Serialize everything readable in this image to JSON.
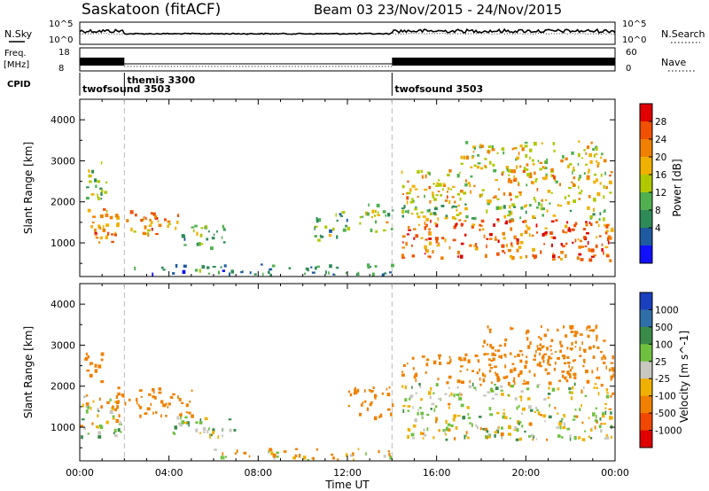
{
  "header": {
    "station": "Saskatoon (fitACF)",
    "beam_date": "Beam 03  23/Nov/2015 - 24/Nov/2015"
  },
  "panels": {
    "nsky": {
      "label": "N.Sky",
      "ticks": [
        "10^5",
        "10^0"
      ]
    },
    "nsearch": {
      "label": "N.Search",
      "ticks": [
        "10^5",
        "10^0"
      ]
    },
    "freq": {
      "label_line1": "Freq.",
      "label_line2": "[MHz]",
      "ticks": [
        "18",
        "8"
      ]
    },
    "nave": {
      "label": "Nave",
      "ticks": [
        "60",
        "0"
      ]
    },
    "cpid": {
      "label": "CPID",
      "segments": [
        {
          "name": "twofsound 3503",
          "start_h": 0.0,
          "end_h": 2.0
        },
        {
          "name": "themis 3300",
          "start_h": 2.0,
          "end_h": 14.0
        },
        {
          "name": "twofsound 3503",
          "start_h": 14.0,
          "end_h": 24.0
        }
      ]
    }
  },
  "chart_data": [
    {
      "type": "heatmap",
      "title": "Power",
      "ylabel": "Slant Range [km]",
      "xlabel": "",
      "xlim": [
        0,
        24
      ],
      "ylim": [
        180,
        4500
      ],
      "yticks": [
        "1000",
        "2000",
        "3000",
        "4000"
      ],
      "colorbar": {
        "label": "Power [dB]",
        "ticks": [
          "28",
          "24",
          "20",
          "16",
          "12",
          "8",
          "4"
        ],
        "colors": [
          "#e00000",
          "#f05000",
          "#f08000",
          "#f0b000",
          "#b0c800",
          "#50b050",
          "#2e8b57",
          "#1e5aa0",
          "#1010ff"
        ]
      },
      "regions": [
        {
          "t0": 0.2,
          "t1": 1.5,
          "r0": 1000,
          "r1": 1900,
          "value": 22
        },
        {
          "t0": 0.2,
          "t1": 1.2,
          "r0": 2100,
          "r1": 3100,
          "value": 12
        },
        {
          "t0": 1.5,
          "t1": 4.5,
          "r0": 1200,
          "r1": 1800,
          "value": 22
        },
        {
          "t0": 4.5,
          "t1": 6.5,
          "r0": 900,
          "r1": 1500,
          "value": 10
        },
        {
          "t0": 2.0,
          "t1": 14.0,
          "r0": 200,
          "r1": 500,
          "value": 6
        },
        {
          "t0": 10.5,
          "t1": 12.0,
          "r0": 1100,
          "r1": 1800,
          "value": 10
        },
        {
          "t0": 12.5,
          "t1": 14.0,
          "r0": 1300,
          "r1": 2000,
          "value": 14
        },
        {
          "t0": 14.4,
          "t1": 24.0,
          "r0": 600,
          "r1": 1600,
          "value": 24
        },
        {
          "t0": 14.4,
          "t1": 24.0,
          "r0": 1600,
          "r1": 2000,
          "value": 12
        },
        {
          "t0": 14.4,
          "t1": 24.0,
          "r0": 2000,
          "r1": 2800,
          "value": 18
        },
        {
          "t0": 17.0,
          "t1": 23.5,
          "r0": 2800,
          "r1": 3500,
          "value": 16
        }
      ]
    },
    {
      "type": "heatmap",
      "title": "Velocity",
      "ylabel": "Slant Range [km]",
      "xlabel": "Time UT",
      "xlim": [
        0,
        24
      ],
      "ylim": [
        180,
        4500
      ],
      "xticks": [
        "00:00",
        "04:00",
        "08:00",
        "12:00",
        "16:00",
        "20:00",
        "00:00"
      ],
      "yticks": [
        "1000",
        "2000",
        "3000",
        "4000"
      ],
      "colorbar": {
        "label": "Velocity [m s^-1]",
        "ticks": [
          "1000",
          "500",
          "100",
          "25",
          "-25",
          "-100",
          "-500",
          "-1000"
        ],
        "colors": [
          "#1a3fbf",
          "#2e6fa8",
          "#3a8a4a",
          "#70c040",
          "#c8c8c0",
          "#f0b000",
          "#f08000",
          "#f04800",
          "#e00000"
        ]
      },
      "regions": [
        {
          "t0": 0.0,
          "t1": 2.0,
          "r0": 800,
          "r1": 1800,
          "value": 0
        },
        {
          "t0": 0.2,
          "t1": 1.0,
          "r0": 2100,
          "r1": 2900,
          "value": -300
        },
        {
          "t0": 1.5,
          "t1": 5.0,
          "r0": 1300,
          "r1": 2000,
          "value": -300
        },
        {
          "t0": 4.0,
          "t1": 7.0,
          "r0": 800,
          "r1": 1300,
          "value": 50
        },
        {
          "t0": 6.0,
          "t1": 14.0,
          "r0": 200,
          "r1": 500,
          "value": -60
        },
        {
          "t0": 12.0,
          "t1": 14.0,
          "r0": 1200,
          "r1": 2000,
          "value": -300
        },
        {
          "t0": 14.4,
          "t1": 24.0,
          "r0": 700,
          "r1": 1600,
          "value": 0
        },
        {
          "t0": 14.4,
          "t1": 24.0,
          "r0": 1700,
          "r1": 2100,
          "value": 0
        },
        {
          "t0": 14.4,
          "t1": 24.0,
          "r0": 2100,
          "r1": 2800,
          "value": -300
        },
        {
          "t0": 18.0,
          "t1": 23.5,
          "r0": 2700,
          "r1": 3500,
          "value": -300
        }
      ]
    }
  ],
  "colors": {
    "grid_dash": "#bbbbbb",
    "ground_scatter": "#c8c8c0",
    "axis": "#000000"
  }
}
